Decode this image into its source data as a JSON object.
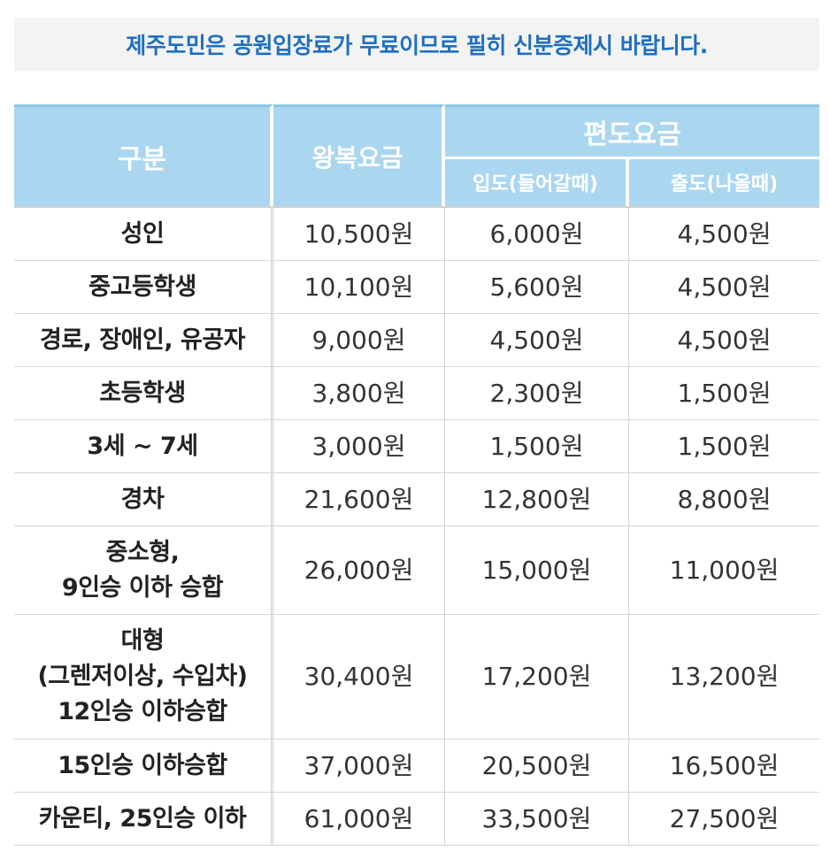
{
  "notice": "제주도민은 공원입장료가 무료이므로 필히 신분증제시 바랍니다.",
  "table": {
    "header": {
      "category": "구분",
      "roundtrip": "왕복요금",
      "oneway": "편도요금",
      "inbound": "입도(들어갈때)",
      "outbound": "출도(나올때)"
    },
    "rows": [
      {
        "category": [
          "성인"
        ],
        "roundtrip": "10,500원",
        "inbound": "6,000원",
        "outbound": "4,500원"
      },
      {
        "category": [
          "중고등학생"
        ],
        "roundtrip": "10,100원",
        "inbound": "5,600원",
        "outbound": "4,500원"
      },
      {
        "category": [
          "경로, 장애인, 유공자"
        ],
        "roundtrip": "9,000원",
        "inbound": "4,500원",
        "outbound": "4,500원"
      },
      {
        "category": [
          "초등학생"
        ],
        "roundtrip": "3,800원",
        "inbound": "2,300원",
        "outbound": "1,500원"
      },
      {
        "category": [
          "3세 ~ 7세"
        ],
        "roundtrip": "3,000원",
        "inbound": "1,500원",
        "outbound": "1,500원"
      },
      {
        "category": [
          "경차"
        ],
        "roundtrip": "21,600원",
        "inbound": "12,800원",
        "outbound": "8,800원"
      },
      {
        "category": [
          "중소형,",
          "9인승 이하 승합"
        ],
        "roundtrip": "26,000원",
        "inbound": "15,000원",
        "outbound": "11,000원"
      },
      {
        "category": [
          "대형",
          "(그렌저이상, 수입차)",
          "12인승 이하승합"
        ],
        "roundtrip": "30,400원",
        "inbound": "17,200원",
        "outbound": "13,200원"
      },
      {
        "category": [
          "15인승 이하승합"
        ],
        "roundtrip": "37,000원",
        "inbound": "20,500원",
        "outbound": "16,500원"
      },
      {
        "category": [
          "카운티, 25인승 이하"
        ],
        "roundtrip": "61,000원",
        "inbound": "33,500원",
        "outbound": "27,500원"
      }
    ]
  }
}
